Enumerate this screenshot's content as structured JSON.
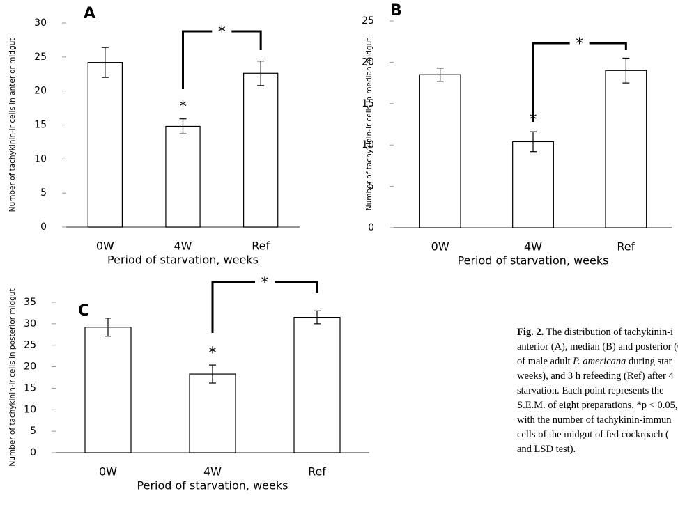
{
  "chart_data": [
    {
      "type": "bar",
      "title": "A",
      "categories": [
        "0W",
        "4W",
        "Ref"
      ],
      "values": [
        24.2,
        14.8,
        22.6
      ],
      "errors": [
        2.2,
        1.1,
        1.8
      ],
      "color": "#ffffff",
      "ylim": [
        0,
        30
      ],
      "yticks": [
        0,
        5,
        10,
        15,
        20,
        25,
        30
      ],
      "xlabel": "Period of starvation, weeks",
      "ylabel": "Number of tachykinin-ir cells in anterior midgut",
      "annotations": [
        "*",
        "*"
      ]
    },
    {
      "type": "bar",
      "title": "B",
      "categories": [
        "0W",
        "4W",
        "Ref"
      ],
      "values": [
        18.5,
        10.4,
        19
      ],
      "errors": [
        0.8,
        1.2,
        1.5
      ],
      "color": "#ffffff",
      "ylim": [
        0,
        25
      ],
      "yticks": [
        0,
        5,
        10,
        15,
        20,
        25
      ],
      "xlabel": "Period of starvation, weeks",
      "ylabel": "Number of tachykinin-ir cells in median midgut",
      "annotations": [
        "*",
        "*"
      ]
    },
    {
      "type": "bar",
      "title": "C",
      "categories": [
        "0W",
        "4W",
        "Ref"
      ],
      "values": [
        29.2,
        18.3,
        31.5
      ],
      "errors": [
        2.1,
        2.1,
        1.5
      ],
      "color": "#ffffff",
      "ylim": [
        0,
        35
      ],
      "yticks": [
        0,
        5,
        10,
        15,
        20,
        25,
        30,
        35
      ],
      "xlabel": "Period of starvation, weeks",
      "ylabel": "Number of tachykinin-ir cells in posterior midgut",
      "annotations": [
        "*",
        "*"
      ]
    }
  ],
  "caption": {
    "lines": [
      [
        "Fig. 2.",
        " The distribution of tachykinin-i"
      ],
      "anterior (A), median (B) and posterior (C",
      [
        "of male adult ",
        "P. americana",
        " during star"
      ],
      "weeks), and 3 h refeeding (Ref) after 4",
      "starvation. Each point represents the",
      "S.E.M. of eight preparations. *p < 0.05, c",
      "with the number of tachykinin-immun",
      "cells of the midgut of fed cockroach (",
      "and LSD test)."
    ]
  }
}
